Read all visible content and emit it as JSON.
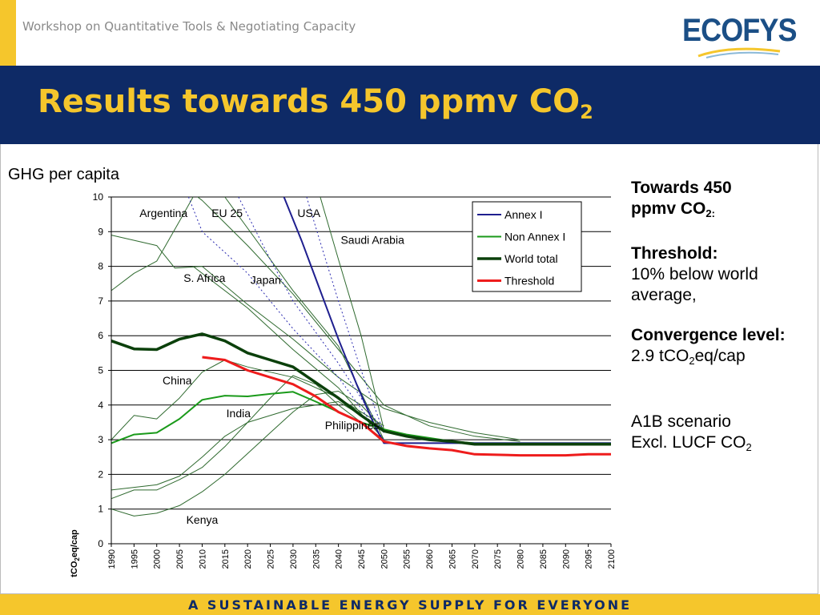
{
  "header": {
    "workshop": "Workshop on Quantitative Tools & Negotiating Capacity",
    "logo": "ECOFYS",
    "title": "Results towards 450 ppmv CO",
    "title_sub": "2"
  },
  "left_label": "GHG per capita",
  "side": {
    "towards_a": "Towards 450",
    "towards_b": "ppmv CO",
    "towards_sub": "2:",
    "threshold_head": "Threshold:",
    "threshold_text": "10% below world average,",
    "conv_head": "Convergence level:",
    "conv_a": "2.9 tCO",
    "conv_sub": "2",
    "conv_b": "eq/cap",
    "scenario_a": "A1B scenario",
    "scenario_b": "Excl. LUCF CO",
    "scenario_sub": "2"
  },
  "footer": "A SUSTAINABLE ENERGY SUPPLY FOR EVERYONE",
  "colors": {
    "navy": "#0e2a66",
    "yellow": "#f5c62c",
    "annex": "#1f1f8f",
    "non_annex": "#1a9a1a",
    "world": "#0b400b",
    "threshold": "#ee1c1c",
    "country": "#2f6a2f",
    "dotted": "#2a2ab0"
  },
  "chart_data": {
    "type": "line",
    "ylabel_main": "tCO",
    "ylabel_sub": "2",
    "ylabel_tail": "eq/cap",
    "ylim": [
      0,
      10
    ],
    "yticks": [
      0,
      1,
      2,
      3,
      4,
      5,
      6,
      7,
      8,
      9,
      10
    ],
    "xticks": [
      "1990",
      "1995",
      "2000",
      "2005",
      "2010",
      "2015",
      "2020",
      "2025",
      "2030",
      "2035",
      "2040",
      "2045",
      "2050",
      "2055",
      "2060",
      "2065",
      "2070",
      "2075",
      "2080",
      "2085",
      "2090",
      "2095",
      "2100"
    ],
    "grid": "horizontal",
    "legend_position": "top-right",
    "series": [
      {
        "name": "Annex I",
        "kind": "annex",
        "points": [
          [
            2028,
            10
          ],
          [
            2032,
            8.7
          ],
          [
            2036,
            7.3
          ],
          [
            2040,
            5.9
          ],
          [
            2044,
            4.6
          ],
          [
            2048,
            3.4
          ],
          [
            2050,
            2.9
          ],
          [
            2060,
            2.9
          ],
          [
            2070,
            2.9
          ],
          [
            2080,
            2.9
          ],
          [
            2090,
            2.9
          ],
          [
            2100,
            2.9
          ]
        ]
      },
      {
        "name": "Non Annex I",
        "kind": "non_annex",
        "points": [
          [
            1990,
            2.9
          ],
          [
            1995,
            3.15
          ],
          [
            2000,
            3.2
          ],
          [
            2005,
            3.6
          ],
          [
            2010,
            4.15
          ],
          [
            2015,
            4.27
          ],
          [
            2020,
            4.25
          ],
          [
            2025,
            4.32
          ],
          [
            2030,
            4.38
          ],
          [
            2035,
            4.1
          ],
          [
            2040,
            3.8
          ],
          [
            2045,
            3.5
          ],
          [
            2050,
            3.3
          ],
          [
            2055,
            3.15
          ],
          [
            2060,
            3.05
          ],
          [
            2065,
            2.95
          ],
          [
            2070,
            2.9
          ],
          [
            2080,
            2.9
          ],
          [
            2090,
            2.9
          ],
          [
            2100,
            2.9
          ]
        ]
      },
      {
        "name": "World total",
        "kind": "world",
        "points": [
          [
            1990,
            5.85
          ],
          [
            1995,
            5.62
          ],
          [
            2000,
            5.6
          ],
          [
            2005,
            5.9
          ],
          [
            2010,
            6.05
          ],
          [
            2015,
            5.85
          ],
          [
            2020,
            5.5
          ],
          [
            2025,
            5.3
          ],
          [
            2030,
            5.1
          ],
          [
            2035,
            4.65
          ],
          [
            2040,
            4.2
          ],
          [
            2045,
            3.7
          ],
          [
            2050,
            3.25
          ],
          [
            2055,
            3.1
          ],
          [
            2060,
            3.0
          ],
          [
            2065,
            2.95
          ],
          [
            2070,
            2.87
          ],
          [
            2080,
            2.87
          ],
          [
            2090,
            2.87
          ],
          [
            2100,
            2.87
          ]
        ]
      },
      {
        "name": "Threshold",
        "kind": "threshold",
        "points": [
          [
            2010,
            5.38
          ],
          [
            2015,
            5.3
          ],
          [
            2020,
            5.0
          ],
          [
            2025,
            4.8
          ],
          [
            2030,
            4.6
          ],
          [
            2035,
            4.25
          ],
          [
            2040,
            3.8
          ],
          [
            2045,
            3.5
          ],
          [
            2050,
            2.95
          ],
          [
            2055,
            2.82
          ],
          [
            2060,
            2.75
          ],
          [
            2065,
            2.7
          ],
          [
            2070,
            2.58
          ],
          [
            2080,
            2.55
          ],
          [
            2090,
            2.55
          ],
          [
            2095,
            2.58
          ],
          [
            2100,
            2.58
          ]
        ]
      },
      {
        "kind": "country",
        "points": [
          [
            1990,
            8.9
          ],
          [
            1995,
            8.75
          ],
          [
            2000,
            8.6
          ],
          [
            2004,
            7.95
          ],
          [
            2010,
            8.0
          ],
          [
            2020,
            6.9
          ],
          [
            2030,
            5.9
          ],
          [
            2040,
            4.8
          ],
          [
            2050,
            3.9
          ],
          [
            2060,
            3.5
          ],
          [
            2070,
            3.2
          ],
          [
            2080,
            3.0
          ]
        ]
      },
      {
        "kind": "country",
        "points": [
          [
            1990,
            7.3
          ],
          [
            1995,
            7.8
          ],
          [
            2000,
            8.15
          ],
          [
            2005,
            9.3
          ],
          [
            2008,
            10
          ]
        ]
      },
      {
        "kind": "country",
        "points": [
          [
            2009,
            10
          ],
          [
            2010,
            9.9
          ],
          [
            2020,
            8.6
          ],
          [
            2030,
            7.2
          ],
          [
            2040,
            5.6
          ],
          [
            2050,
            4.0
          ],
          [
            2060,
            3.4
          ],
          [
            2070,
            3.1
          ],
          [
            2080,
            2.95
          ]
        ]
      },
      {
        "kind": "country",
        "points": [
          [
            2015,
            10
          ],
          [
            2020,
            9.1
          ],
          [
            2030,
            7.3
          ],
          [
            2040,
            5.7
          ],
          [
            2050,
            3.0
          ]
        ]
      },
      {
        "kind": "country",
        "points": [
          [
            2036,
            10
          ],
          [
            2040,
            8.2
          ],
          [
            2045,
            6.0
          ],
          [
            2050,
            3.3
          ]
        ]
      },
      {
        "kind": "country",
        "points": [
          [
            2008,
            8.0
          ],
          [
            2020,
            6.8
          ],
          [
            2030,
            5.6
          ],
          [
            2040,
            4.5
          ],
          [
            2050,
            3.0
          ]
        ]
      },
      {
        "kind": "country",
        "points": [
          [
            1990,
            3.0
          ],
          [
            1995,
            3.7
          ],
          [
            2000,
            3.6
          ],
          [
            2005,
            4.2
          ],
          [
            2010,
            4.95
          ],
          [
            2015,
            5.3
          ],
          [
            2020,
            5.1
          ],
          [
            2030,
            4.8
          ],
          [
            2040,
            4.2
          ],
          [
            2050,
            3.4
          ]
        ]
      },
      {
        "kind": "country",
        "points": [
          [
            1990,
            1.3
          ],
          [
            1995,
            1.55
          ],
          [
            2000,
            1.55
          ],
          [
            2005,
            1.85
          ],
          [
            2010,
            2.2
          ],
          [
            2015,
            2.8
          ],
          [
            2020,
            3.5
          ],
          [
            2025,
            4.2
          ],
          [
            2030,
            4.85
          ],
          [
            2035,
            4.6
          ],
          [
            2040,
            4.0
          ],
          [
            2050,
            3.0
          ]
        ]
      },
      {
        "kind": "country",
        "points": [
          [
            1990,
            1.55
          ],
          [
            2000,
            1.7
          ],
          [
            2005,
            1.95
          ],
          [
            2010,
            2.5
          ],
          [
            2015,
            3.1
          ],
          [
            2020,
            3.5
          ],
          [
            2030,
            3.9
          ],
          [
            2040,
            4.1
          ],
          [
            2050,
            3.3
          ]
        ]
      },
      {
        "kind": "country",
        "points": [
          [
            1990,
            1.0
          ],
          [
            1995,
            0.8
          ],
          [
            2000,
            0.88
          ],
          [
            2005,
            1.1
          ],
          [
            2010,
            1.5
          ],
          [
            2015,
            2.0
          ],
          [
            2020,
            2.6
          ],
          [
            2025,
            3.2
          ],
          [
            2030,
            3.8
          ],
          [
            2035,
            4.3
          ],
          [
            2040,
            4.4
          ],
          [
            2045,
            4.0
          ],
          [
            2050,
            3.3
          ]
        ]
      },
      {
        "kind": "dotted",
        "points": [
          [
            2007,
            10
          ],
          [
            2010,
            9.0
          ],
          [
            2020,
            7.8
          ],
          [
            2030,
            6.2
          ],
          [
            2040,
            4.8
          ],
          [
            2050,
            3.0
          ]
        ]
      },
      {
        "kind": "dotted",
        "points": [
          [
            2018,
            10
          ],
          [
            2025,
            8.2
          ],
          [
            2030,
            7.0
          ],
          [
            2040,
            5.2
          ],
          [
            2050,
            3.2
          ]
        ]
      },
      {
        "kind": "dotted",
        "points": [
          [
            2033,
            10
          ],
          [
            2036,
            8.7
          ],
          [
            2040,
            7.0
          ],
          [
            2045,
            5.0
          ],
          [
            2050,
            3.2
          ]
        ]
      }
    ],
    "annotations": [
      {
        "text": "Argentina",
        "x": 2001.5,
        "y": 9.42
      },
      {
        "text": "EU 25",
        "x": 2015.5,
        "y": 9.42
      },
      {
        "text": "USA",
        "x": 2033.5,
        "y": 9.42
      },
      {
        "text": "Saudi Arabia",
        "x": 2047.5,
        "y": 8.65
      },
      {
        "text": "S. Africa",
        "x": 2010.5,
        "y": 7.55
      },
      {
        "text": "Japan",
        "x": 2024,
        "y": 7.5
      },
      {
        "text": "China",
        "x": 2004.5,
        "y": 4.6
      },
      {
        "text": "India",
        "x": 2018,
        "y": 3.65
      },
      {
        "text": "Philippines",
        "x": 2043,
        "y": 3.3
      },
      {
        "text": "Kenya",
        "x": 2010,
        "y": 0.58
      }
    ]
  }
}
